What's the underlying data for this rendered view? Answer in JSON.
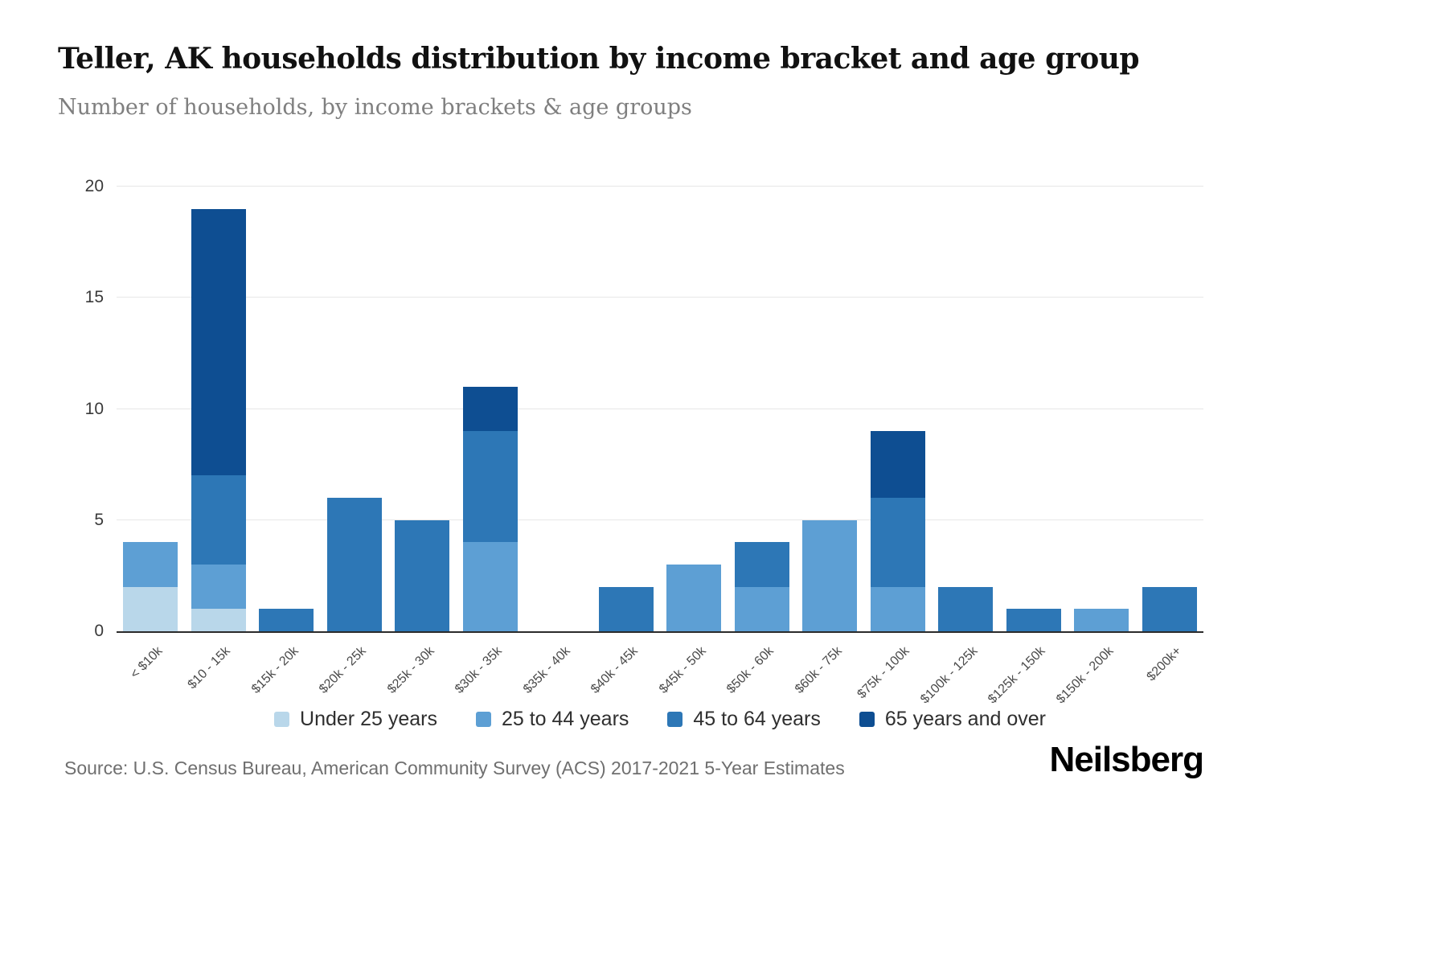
{
  "chart_data": {
    "type": "bar",
    "stacked": true,
    "title": "Teller, AK households distribution by income bracket and age group",
    "subtitle": "Number of households, by income brackets & age groups",
    "categories": [
      "< $10k",
      "$10 - 15k",
      "$15k - 20k",
      "$20k - 25k",
      "$25k - 30k",
      "$30k - 35k",
      "$35k - 40k",
      "$40k - 45k",
      "$45k - 50k",
      "$50k - 60k",
      "$60k - 75k",
      "$75k - 100k",
      "$100k - 125k",
      "$125k - 150k",
      "$150k - 200k",
      "$200k+"
    ],
    "series": [
      {
        "name": "Under 25 years",
        "color": "#b9d7ea",
        "values": [
          2,
          1,
          0,
          0,
          0,
          0,
          0,
          0,
          0,
          0,
          0,
          0,
          0,
          0,
          0,
          0
        ]
      },
      {
        "name": "25 to 44 years",
        "color": "#5d9fd4",
        "values": [
          2,
          2,
          0,
          0,
          0,
          4,
          0,
          0,
          3,
          2,
          5,
          2,
          0,
          0,
          1,
          0
        ]
      },
      {
        "name": "45 to 64 years",
        "color": "#2d77b6",
        "values": [
          0,
          4,
          1,
          6,
          5,
          5,
          0,
          2,
          0,
          2,
          0,
          4,
          2,
          1,
          0,
          2
        ]
      },
      {
        "name": "65 years and over",
        "color": "#0e4e92",
        "values": [
          0,
          12,
          0,
          0,
          0,
          2,
          0,
          0,
          0,
          0,
          0,
          3,
          0,
          0,
          0,
          0
        ]
      }
    ],
    "ylim": [
      0,
      20
    ],
    "yticks": [
      0,
      5,
      10,
      15,
      20
    ],
    "grid": true,
    "legend_position": "bottom",
    "xlabel": "",
    "ylabel": ""
  },
  "footer": {
    "source": "Source: U.S. Census Bureau, American Community Survey (ACS) 2017-2021 5-Year Estimates",
    "brand": "Neilsberg"
  }
}
